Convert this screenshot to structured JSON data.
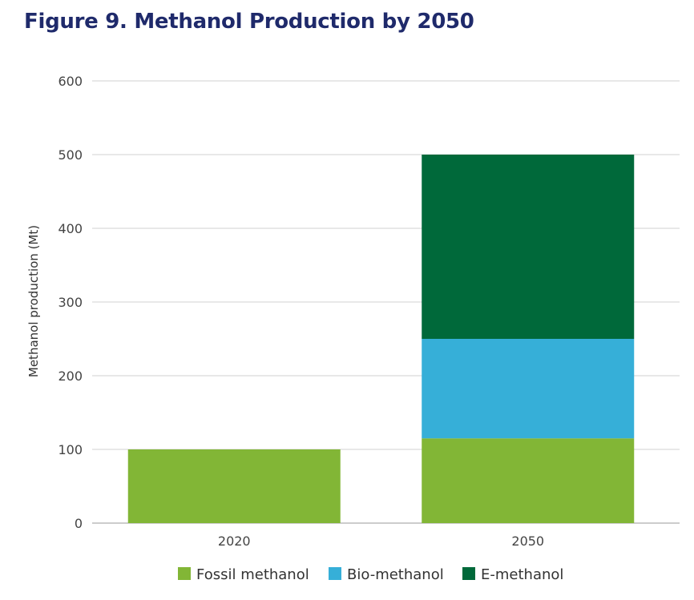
{
  "chart_data": {
    "type": "bar",
    "stacked": true,
    "title": "Figure 9. Methanol Production by 2050",
    "xlabel": "",
    "ylabel": "Methanol production (Mt)",
    "categories": [
      "2020",
      "2050"
    ],
    "yticks": [
      0,
      100,
      200,
      300,
      400,
      500,
      600
    ],
    "ylim": [
      0,
      600
    ],
    "grid": true,
    "legend_position": "bottom",
    "series": [
      {
        "name": "Fossil methanol",
        "color": "#82b636",
        "values": [
          100,
          115
        ]
      },
      {
        "name": "Bio-methanol",
        "color": "#36afd8",
        "values": [
          0,
          135
        ]
      },
      {
        "name": "E-methanol",
        "color": "#00693a",
        "values": [
          0,
          250
        ]
      }
    ]
  }
}
